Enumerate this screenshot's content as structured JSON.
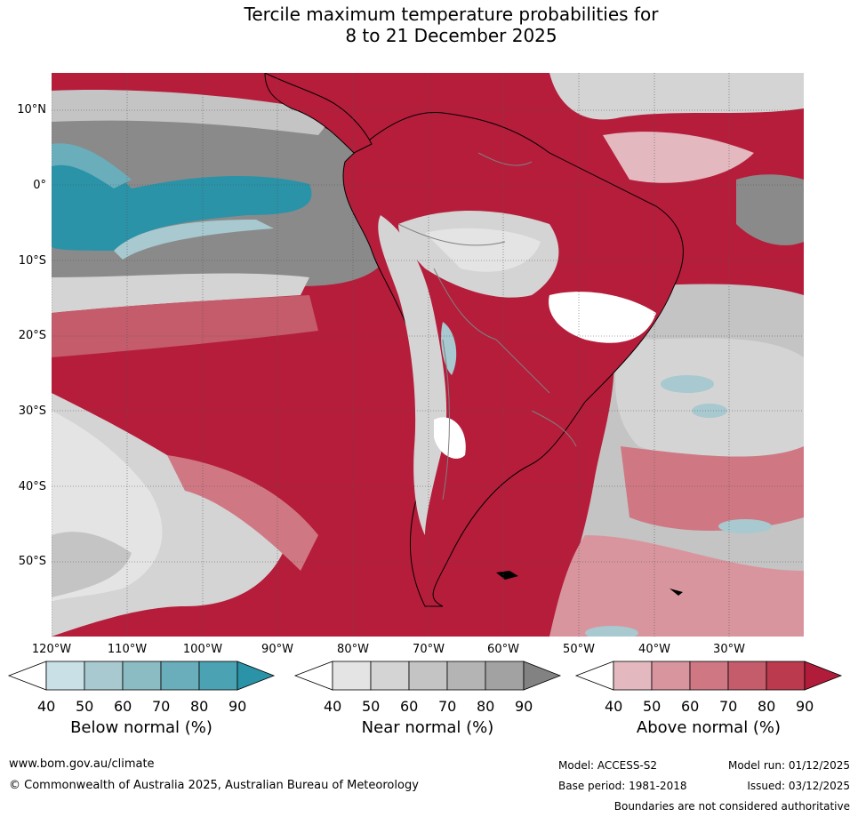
{
  "title": {
    "line1": "Tercile maximum temperature probabilities for",
    "line2": "8 to 21 December 2025"
  },
  "map": {
    "lat_labels": [
      "10°N",
      "0°",
      "10°S",
      "20°S",
      "30°S",
      "40°S",
      "50°S"
    ],
    "lon_labels": [
      "120°W",
      "110°W",
      "100°W",
      "90°W",
      "80°W",
      "70°W",
      "60°W",
      "50°W",
      "40°W",
      "30°W"
    ]
  },
  "legends": [
    {
      "caption": "Below normal (%)",
      "ticks": [
        "40",
        "50",
        "60",
        "70",
        "80",
        "90"
      ],
      "colors": [
        "#ffffff",
        "#c8e0e6",
        "#a7c9cf",
        "#8bbcc4",
        "#6aaebb",
        "#4aa2b2",
        "#2a93a8"
      ]
    },
    {
      "caption": "Near normal (%)",
      "ticks": [
        "40",
        "50",
        "60",
        "70",
        "80",
        "90"
      ],
      "colors": [
        "#ffffff",
        "#e4e4e4",
        "#d4d4d4",
        "#c4c4c4",
        "#b4b4b4",
        "#a2a2a2",
        "#828282"
      ]
    },
    {
      "caption": "Above normal (%)",
      "ticks": [
        "40",
        "50",
        "60",
        "70",
        "80",
        "90"
      ],
      "colors": [
        "#ffffff",
        "#e3b9bf",
        "#d9959e",
        "#cf7883",
        "#c45c6b",
        "#bb3a4e",
        "#b01c3a"
      ]
    }
  ],
  "footer": {
    "website": "www.bom.gov.au/climate",
    "copyright": "© Commonwealth of Australia 2025, Australian Bureau of Meteorology",
    "model": "Model: ACCESS-S2",
    "base_period": "Base period: 1981-2018",
    "model_run": "Model run: 01/12/2025",
    "issued": "Issued: 03/12/2025",
    "disclaimer": "Boundaries are not considered authoritative"
  }
}
